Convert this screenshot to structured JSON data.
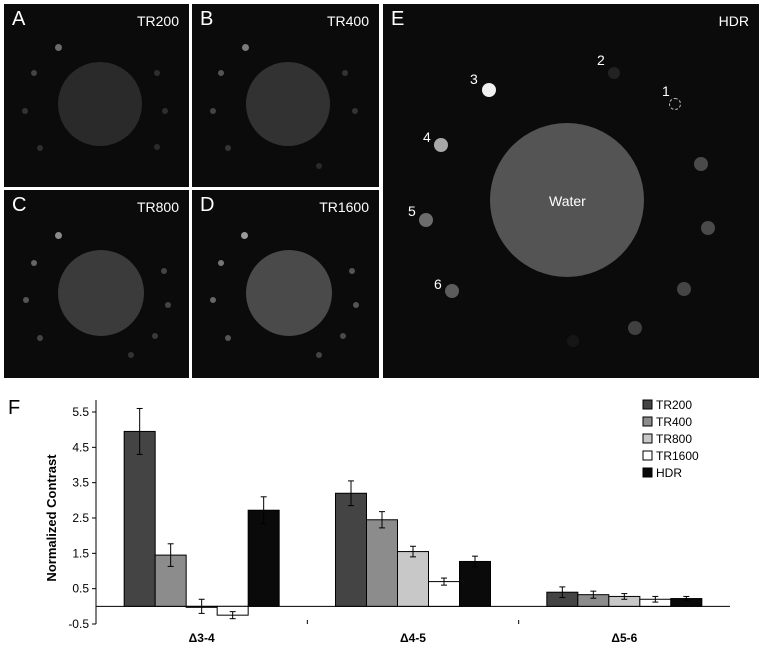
{
  "panels": {
    "a": {
      "letter": "A",
      "label": "TR200",
      "water_gray": "#2a2a2a"
    },
    "b": {
      "letter": "B",
      "label": "TR400",
      "water_gray": "#323232"
    },
    "c": {
      "letter": "C",
      "label": "TR800",
      "water_gray": "#3b3b3b"
    },
    "d": {
      "letter": "D",
      "label": "TR1600",
      "water_gray": "#4a4a4a"
    },
    "e": {
      "letter": "E",
      "label": "HDR",
      "water_label": "Water",
      "water_gray": "#545454",
      "vial_numbers": [
        "1",
        "2",
        "3",
        "4",
        "5",
        "6"
      ]
    }
  },
  "chart_data": {
    "type": "bar",
    "panel_letter": "F",
    "categories": [
      "Δ3-4",
      "Δ4-5",
      "Δ5-6"
    ],
    "ylabel": "Normalized Contrast",
    "ylim": [
      -0.5,
      5.5
    ],
    "yticks": [
      "5.5",
      "4.5",
      "3.5",
      "2.5",
      "1.5",
      "0.5",
      "-0.5"
    ],
    "ytick_values": [
      5.5,
      4.5,
      3.5,
      2.5,
      1.5,
      0.5,
      -0.5
    ],
    "legend_position": "top-right",
    "series": [
      {
        "name": "TR200",
        "values": [
          4.95,
          3.2,
          0.4
        ],
        "errors": [
          0.65,
          0.35,
          0.15
        ],
        "color": "#444444"
      },
      {
        "name": "TR400",
        "values": [
          1.45,
          2.45,
          0.33
        ],
        "errors": [
          0.32,
          0.23,
          0.1
        ],
        "color": "#8c8c8c"
      },
      {
        "name": "TR800",
        "values": [
          0.0,
          1.55,
          0.28
        ],
        "errors": [
          0.2,
          0.15,
          0.08
        ],
        "color": "#c8c8c8"
      },
      {
        "name": "TR1600",
        "values": [
          -0.25,
          0.7,
          0.2
        ],
        "errors": [
          0.1,
          0.1,
          0.08
        ],
        "color": "#ffffff"
      },
      {
        "name": "HDR",
        "values": [
          2.72,
          1.27,
          0.22
        ],
        "errors": [
          0.38,
          0.15,
          0.06
        ],
        "color": "#0a0a0a"
      }
    ]
  }
}
